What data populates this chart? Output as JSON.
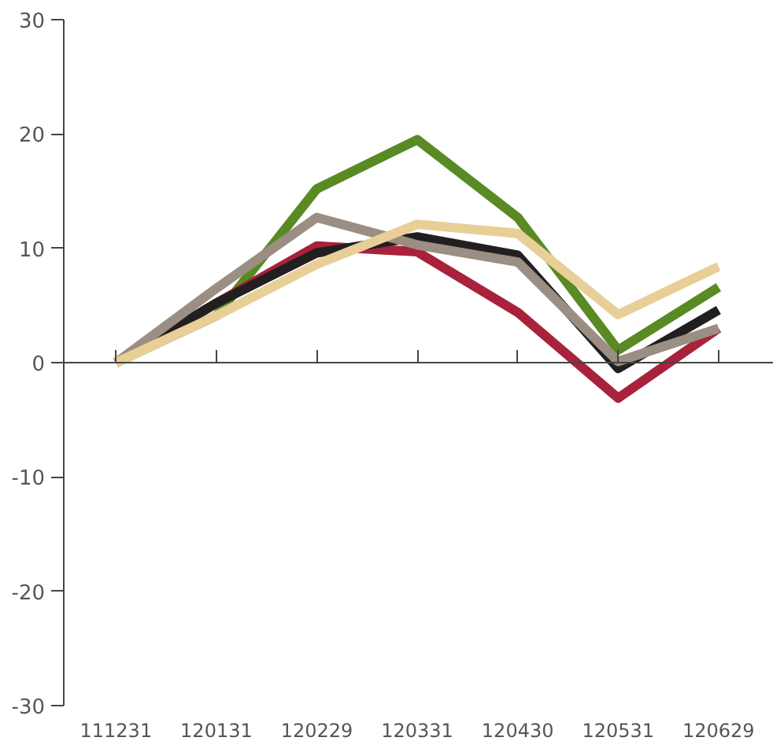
{
  "chart_data": {
    "type": "line",
    "categories": [
      "111231",
      "120131",
      "120229",
      "120331",
      "120430",
      "120531",
      "120629"
    ],
    "series": [
      {
        "color": "#5a8a23",
        "values": [
          0,
          4.1,
          15.2,
          19.5,
          12.7,
          1.1,
          6.6
        ]
      },
      {
        "color": "#a8223c",
        "values": [
          0,
          5.2,
          10.2,
          9.7,
          4.4,
          -3.1,
          3.0
        ]
      },
      {
        "color": "#231f20",
        "values": [
          0,
          5.2,
          9.6,
          11.0,
          9.4,
          -0.5,
          4.6
        ]
      },
      {
        "color": "#9b8e82",
        "values": [
          0,
          6.5,
          12.7,
          10.3,
          8.8,
          0.1,
          3.0
        ]
      },
      {
        "color": "#e8cf98",
        "values": [
          0,
          4.1,
          8.6,
          12.1,
          11.3,
          4.2,
          8.4
        ]
      }
    ],
    "ylim": [
      -30,
      30
    ],
    "yticks": [
      -30,
      -20,
      -10,
      0,
      10,
      20,
      30
    ],
    "marker": "none",
    "line_style": "solid"
  }
}
